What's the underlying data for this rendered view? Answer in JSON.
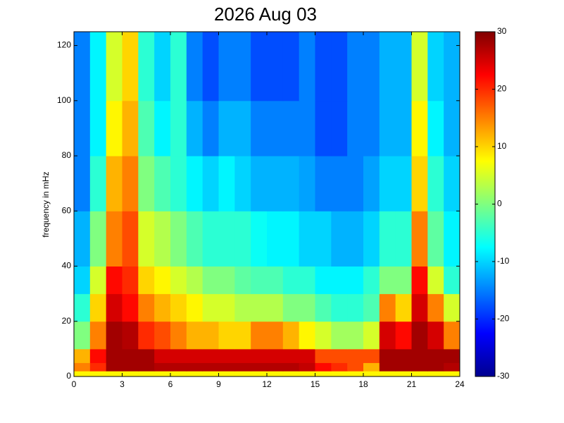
{
  "chart_data": {
    "type": "heatmap",
    "title": "2026 Aug 03",
    "y_label": "frequency in mHz",
    "colormap": "jet",
    "xbins": [
      0,
      1,
      2,
      3,
      4,
      5,
      6,
      7,
      8,
      9,
      10,
      11,
      12,
      13,
      14,
      15,
      16,
      17,
      18,
      19,
      20,
      21,
      22,
      23,
      24
    ],
    "ybins": [
      0,
      2,
      5,
      10,
      20,
      30,
      40,
      60,
      80,
      100,
      125
    ],
    "values": [
      [
        8,
        8,
        8,
        8,
        8,
        8,
        8,
        8,
        8,
        8,
        8,
        8,
        8,
        8,
        8,
        8,
        8,
        8,
        8,
        8,
        8,
        8,
        8,
        8
      ],
      [
        15,
        20,
        28,
        28,
        28,
        27,
        27,
        27,
        27,
        27,
        27,
        27,
        27,
        27,
        26,
        22,
        20,
        18,
        12,
        28,
        28,
        28,
        28,
        27
      ],
      [
        12,
        22,
        28,
        28,
        28,
        25,
        25,
        25,
        25,
        25,
        25,
        25,
        25,
        25,
        25,
        18,
        18,
        18,
        18,
        28,
        28,
        28,
        28,
        28
      ],
      [
        0,
        15,
        28,
        27,
        20,
        18,
        15,
        12,
        12,
        10,
        10,
        15,
        15,
        12,
        8,
        5,
        2,
        2,
        5,
        25,
        22,
        28,
        25,
        15
      ],
      [
        -5,
        10,
        25,
        22,
        15,
        12,
        10,
        8,
        5,
        5,
        3,
        3,
        3,
        0,
        0,
        -3,
        -5,
        -5,
        -3,
        15,
        10,
        25,
        15,
        5
      ],
      [
        -10,
        5,
        22,
        20,
        10,
        8,
        5,
        3,
        0,
        0,
        -2,
        -3,
        -3,
        -5,
        -5,
        -8,
        -8,
        -8,
        -5,
        0,
        0,
        22,
        5,
        -5
      ],
      [
        -12,
        0,
        15,
        18,
        5,
        3,
        0,
        -3,
        -5,
        -5,
        -5,
        -7,
        -8,
        -8,
        -10,
        -10,
        -12,
        -12,
        -10,
        -5,
        -5,
        15,
        -2,
        -8
      ],
      [
        -15,
        -5,
        12,
        15,
        0,
        -3,
        -5,
        -8,
        -10,
        -8,
        -10,
        -12,
        -12,
        -12,
        -13,
        -15,
        -15,
        -15,
        -13,
        -10,
        -10,
        10,
        -5,
        -10
      ],
      [
        -15,
        -8,
        8,
        12,
        -3,
        -8,
        -5,
        -12,
        -15,
        -12,
        -12,
        -15,
        -15,
        -15,
        -15,
        -18,
        -18,
        -15,
        -15,
        -12,
        -12,
        8,
        -8,
        -12
      ],
      [
        -15,
        -8,
        5,
        10,
        -5,
        -10,
        -5,
        -15,
        -18,
        -15,
        -15,
        -18,
        -18,
        -18,
        -15,
        -18,
        -18,
        -15,
        -15,
        -12,
        -12,
        5,
        -10,
        -12
      ]
    ],
    "xlim": [
      0,
      24
    ],
    "xticks": [
      0,
      3,
      6,
      9,
      12,
      15,
      18,
      21,
      24
    ],
    "ylim": [
      0,
      125
    ],
    "yticks": [
      0,
      20,
      40,
      60,
      80,
      100,
      120
    ],
    "clim": [
      -30,
      30
    ],
    "cticks": [
      -30,
      -20,
      -10,
      0,
      10,
      20,
      30
    ]
  }
}
